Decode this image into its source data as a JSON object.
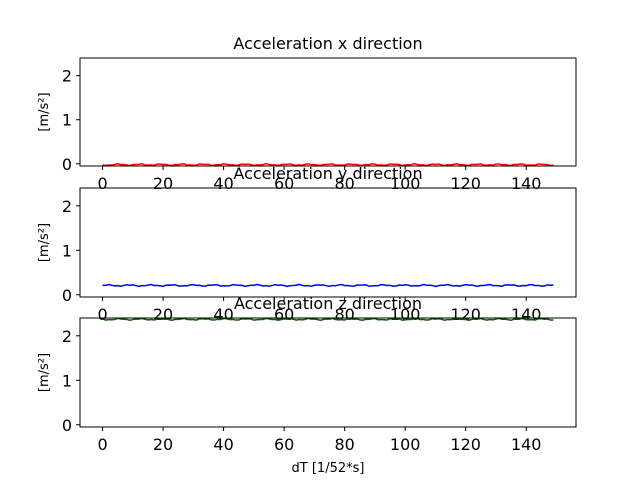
{
  "chart_data": [
    {
      "type": "line",
      "title": "Acceleration x direction",
      "ylabel": "[m/s²]",
      "xlabel": "",
      "xlim": [
        -7.45,
        156.45
      ],
      "ylim": [
        -0.05,
        2.4
      ],
      "xticks": [
        "0",
        "20",
        "40",
        "60",
        "80",
        "100",
        "120",
        "140"
      ],
      "yticks": [
        "0",
        "1",
        "2"
      ],
      "series": [
        {
          "color": "#ff0000",
          "x_range": [
            0,
            149
          ],
          "y_level": -0.02
        }
      ]
    },
    {
      "type": "line",
      "title": "Acceleration y direction",
      "ylabel": "[m/s²]",
      "xlabel": "",
      "xlim": [
        -7.45,
        156.45
      ],
      "ylim": [
        -0.05,
        2.4
      ],
      "xticks": [
        "0",
        "20",
        "40",
        "60",
        "80",
        "100",
        "120",
        "140"
      ],
      "yticks": [
        "0",
        "1",
        "2"
      ],
      "series": [
        {
          "color": "#0000ff",
          "x_range": [
            0,
            149
          ],
          "y_level": 0.21
        }
      ]
    },
    {
      "type": "line",
      "title": "Acceleration z direction",
      "ylabel": "[m/s²]",
      "xlabel": "dT [1/52*s]",
      "xlim": [
        -7.45,
        156.45
      ],
      "ylim": [
        -0.05,
        2.4
      ],
      "xticks": [
        "0",
        "20",
        "40",
        "60",
        "80",
        "100",
        "120",
        "140"
      ],
      "yticks": [
        "0",
        "1",
        "2"
      ],
      "series": [
        {
          "color": "#006400",
          "x_range": [
            0,
            149
          ],
          "y_level": 2.37
        }
      ]
    }
  ]
}
